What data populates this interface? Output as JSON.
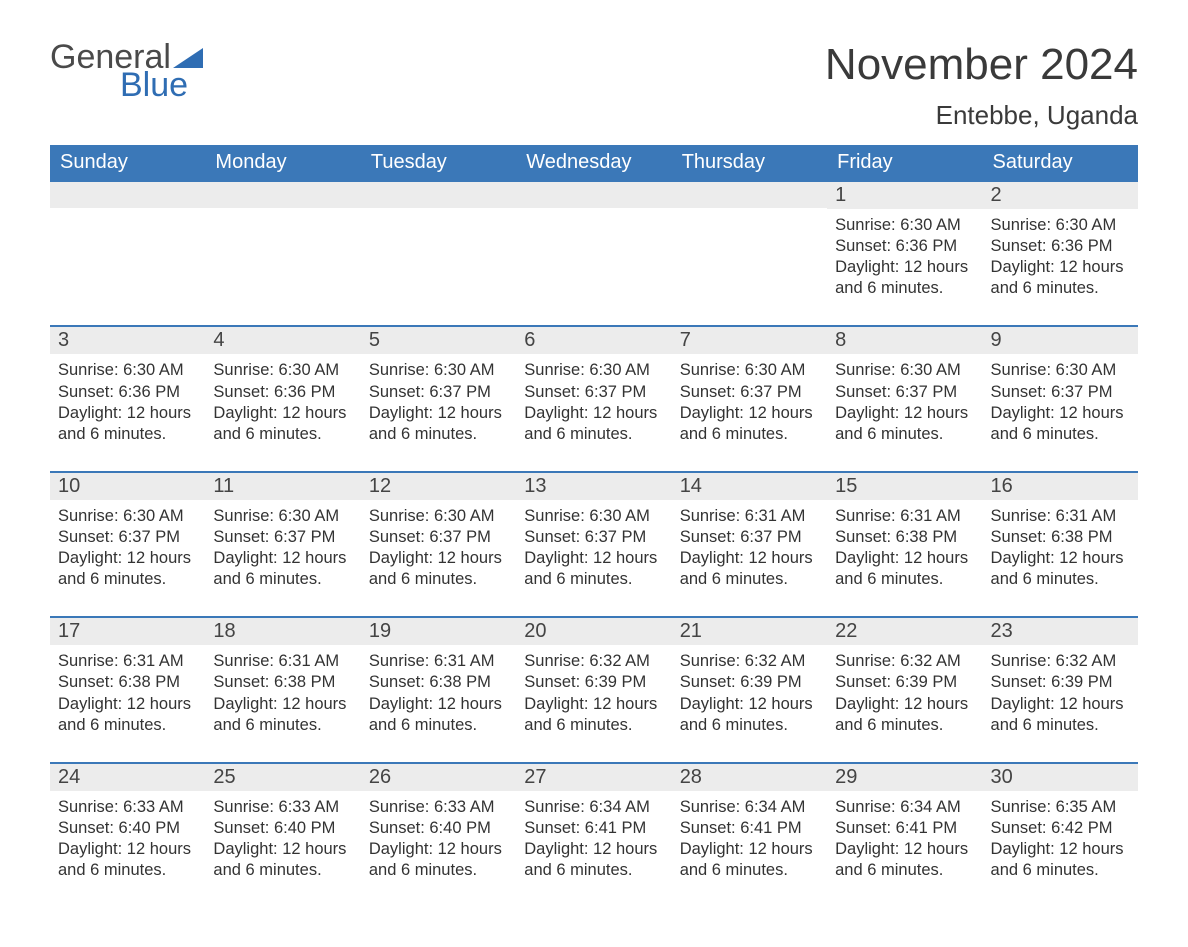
{
  "brand": {
    "word1": "General",
    "word2": "Blue"
  },
  "title": "November 2024",
  "location": "Entebbe, Uganda",
  "colors": {
    "header_bg": "#3b78b8",
    "header_text": "#ffffff",
    "daynum_bg": "#ececec",
    "row_border": "#3b78b8",
    "logo_blue": "#2f6db3",
    "body_text": "#333333",
    "page_bg": "#ffffff"
  },
  "days_of_week": [
    "Sunday",
    "Monday",
    "Tuesday",
    "Wednesday",
    "Thursday",
    "Friday",
    "Saturday"
  ],
  "weeks": [
    [
      {
        "n": "",
        "sunrise": "",
        "sunset": "",
        "daylight": ""
      },
      {
        "n": "",
        "sunrise": "",
        "sunset": "",
        "daylight": ""
      },
      {
        "n": "",
        "sunrise": "",
        "sunset": "",
        "daylight": ""
      },
      {
        "n": "",
        "sunrise": "",
        "sunset": "",
        "daylight": ""
      },
      {
        "n": "",
        "sunrise": "",
        "sunset": "",
        "daylight": ""
      },
      {
        "n": "1",
        "sunrise": "Sunrise: 6:30 AM",
        "sunset": "Sunset: 6:36 PM",
        "daylight": "Daylight: 12 hours and 6 minutes."
      },
      {
        "n": "2",
        "sunrise": "Sunrise: 6:30 AM",
        "sunset": "Sunset: 6:36 PM",
        "daylight": "Daylight: 12 hours and 6 minutes."
      }
    ],
    [
      {
        "n": "3",
        "sunrise": "Sunrise: 6:30 AM",
        "sunset": "Sunset: 6:36 PM",
        "daylight": "Daylight: 12 hours and 6 minutes."
      },
      {
        "n": "4",
        "sunrise": "Sunrise: 6:30 AM",
        "sunset": "Sunset: 6:36 PM",
        "daylight": "Daylight: 12 hours and 6 minutes."
      },
      {
        "n": "5",
        "sunrise": "Sunrise: 6:30 AM",
        "sunset": "Sunset: 6:37 PM",
        "daylight": "Daylight: 12 hours and 6 minutes."
      },
      {
        "n": "6",
        "sunrise": "Sunrise: 6:30 AM",
        "sunset": "Sunset: 6:37 PM",
        "daylight": "Daylight: 12 hours and 6 minutes."
      },
      {
        "n": "7",
        "sunrise": "Sunrise: 6:30 AM",
        "sunset": "Sunset: 6:37 PM",
        "daylight": "Daylight: 12 hours and 6 minutes."
      },
      {
        "n": "8",
        "sunrise": "Sunrise: 6:30 AM",
        "sunset": "Sunset: 6:37 PM",
        "daylight": "Daylight: 12 hours and 6 minutes."
      },
      {
        "n": "9",
        "sunrise": "Sunrise: 6:30 AM",
        "sunset": "Sunset: 6:37 PM",
        "daylight": "Daylight: 12 hours and 6 minutes."
      }
    ],
    [
      {
        "n": "10",
        "sunrise": "Sunrise: 6:30 AM",
        "sunset": "Sunset: 6:37 PM",
        "daylight": "Daylight: 12 hours and 6 minutes."
      },
      {
        "n": "11",
        "sunrise": "Sunrise: 6:30 AM",
        "sunset": "Sunset: 6:37 PM",
        "daylight": "Daylight: 12 hours and 6 minutes."
      },
      {
        "n": "12",
        "sunrise": "Sunrise: 6:30 AM",
        "sunset": "Sunset: 6:37 PM",
        "daylight": "Daylight: 12 hours and 6 minutes."
      },
      {
        "n": "13",
        "sunrise": "Sunrise: 6:30 AM",
        "sunset": "Sunset: 6:37 PM",
        "daylight": "Daylight: 12 hours and 6 minutes."
      },
      {
        "n": "14",
        "sunrise": "Sunrise: 6:31 AM",
        "sunset": "Sunset: 6:37 PM",
        "daylight": "Daylight: 12 hours and 6 minutes."
      },
      {
        "n": "15",
        "sunrise": "Sunrise: 6:31 AM",
        "sunset": "Sunset: 6:38 PM",
        "daylight": "Daylight: 12 hours and 6 minutes."
      },
      {
        "n": "16",
        "sunrise": "Sunrise: 6:31 AM",
        "sunset": "Sunset: 6:38 PM",
        "daylight": "Daylight: 12 hours and 6 minutes."
      }
    ],
    [
      {
        "n": "17",
        "sunrise": "Sunrise: 6:31 AM",
        "sunset": "Sunset: 6:38 PM",
        "daylight": "Daylight: 12 hours and 6 minutes."
      },
      {
        "n": "18",
        "sunrise": "Sunrise: 6:31 AM",
        "sunset": "Sunset: 6:38 PM",
        "daylight": "Daylight: 12 hours and 6 minutes."
      },
      {
        "n": "19",
        "sunrise": "Sunrise: 6:31 AM",
        "sunset": "Sunset: 6:38 PM",
        "daylight": "Daylight: 12 hours and 6 minutes."
      },
      {
        "n": "20",
        "sunrise": "Sunrise: 6:32 AM",
        "sunset": "Sunset: 6:39 PM",
        "daylight": "Daylight: 12 hours and 6 minutes."
      },
      {
        "n": "21",
        "sunrise": "Sunrise: 6:32 AM",
        "sunset": "Sunset: 6:39 PM",
        "daylight": "Daylight: 12 hours and 6 minutes."
      },
      {
        "n": "22",
        "sunrise": "Sunrise: 6:32 AM",
        "sunset": "Sunset: 6:39 PM",
        "daylight": "Daylight: 12 hours and 6 minutes."
      },
      {
        "n": "23",
        "sunrise": "Sunrise: 6:32 AM",
        "sunset": "Sunset: 6:39 PM",
        "daylight": "Daylight: 12 hours and 6 minutes."
      }
    ],
    [
      {
        "n": "24",
        "sunrise": "Sunrise: 6:33 AM",
        "sunset": "Sunset: 6:40 PM",
        "daylight": "Daylight: 12 hours and 6 minutes."
      },
      {
        "n": "25",
        "sunrise": "Sunrise: 6:33 AM",
        "sunset": "Sunset: 6:40 PM",
        "daylight": "Daylight: 12 hours and 6 minutes."
      },
      {
        "n": "26",
        "sunrise": "Sunrise: 6:33 AM",
        "sunset": "Sunset: 6:40 PM",
        "daylight": "Daylight: 12 hours and 6 minutes."
      },
      {
        "n": "27",
        "sunrise": "Sunrise: 6:34 AM",
        "sunset": "Sunset: 6:41 PM",
        "daylight": "Daylight: 12 hours and 6 minutes."
      },
      {
        "n": "28",
        "sunrise": "Sunrise: 6:34 AM",
        "sunset": "Sunset: 6:41 PM",
        "daylight": "Daylight: 12 hours and 6 minutes."
      },
      {
        "n": "29",
        "sunrise": "Sunrise: 6:34 AM",
        "sunset": "Sunset: 6:41 PM",
        "daylight": "Daylight: 12 hours and 6 minutes."
      },
      {
        "n": "30",
        "sunrise": "Sunrise: 6:35 AM",
        "sunset": "Sunset: 6:42 PM",
        "daylight": "Daylight: 12 hours and 6 minutes."
      }
    ]
  ]
}
